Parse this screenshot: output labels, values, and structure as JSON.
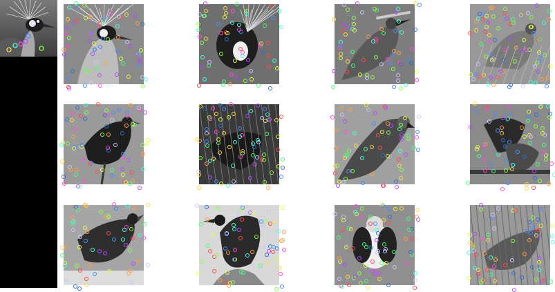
{
  "query": {
    "subject": "crowned-crane",
    "caption": ""
  },
  "results": [
    {
      "id": "r1",
      "subject": "crowned-crane",
      "tone": "#8a8a8a"
    },
    {
      "id": "r2",
      "subject": "crowned-crane-side",
      "tone": "#6f6f6f"
    },
    {
      "id": "r3",
      "subject": "finch-on-branch",
      "tone": "#7d7d7d"
    },
    {
      "id": "r4",
      "subject": "bird-among-leaves",
      "tone": "#989898"
    },
    {
      "id": "r5",
      "subject": "starling",
      "tone": "#9a9a9a"
    },
    {
      "id": "r6",
      "subject": "bird-in-foliage",
      "tone": "#4f4f4f"
    },
    {
      "id": "r7",
      "subject": "parakeet",
      "tone": "#a0a0a0"
    },
    {
      "id": "r8",
      "subject": "birds-on-branch",
      "tone": "#6c6c6c"
    },
    {
      "id": "r9",
      "subject": "sunbird",
      "tone": "#a5a5a5"
    },
    {
      "id": "r10",
      "subject": "bird-on-perch",
      "tone": "#d8d8d8"
    },
    {
      "id": "r11",
      "subject": "puffin-like-bird",
      "tone": "#8f8f8f"
    },
    {
      "id": "r12",
      "subject": "bird-in-brush",
      "tone": "#939393"
    }
  ],
  "keypoint_colors": [
    "#4a8cff",
    "#8cff4a",
    "#ff4ad8",
    "#ffd84a",
    "#4affe0",
    "#b04aff",
    "#ff4a4a",
    "#4aff7a",
    "#c8c8ff",
    "#ffa04a",
    "#2f6fd0",
    "#e0ff4a"
  ]
}
